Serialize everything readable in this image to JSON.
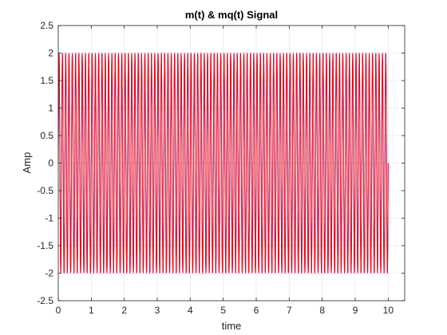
{
  "chart_data": {
    "type": "line",
    "title": "m(t) & mq(t) Signal",
    "xlabel": "time",
    "ylabel": "Amp",
    "xlim": [
      0,
      10.5
    ],
    "ylim": [
      -2.5,
      2.5
    ],
    "x_ticks": [
      0,
      1,
      2,
      3,
      4,
      5,
      6,
      7,
      8,
      9,
      10
    ],
    "x_tick_labels": [
      "0",
      "1",
      "2",
      "3",
      "4",
      "5",
      "6",
      "7",
      "8",
      "9",
      "10"
    ],
    "y_ticks": [
      -2.5,
      -2,
      -1.5,
      -1,
      -0.5,
      0,
      0.5,
      1,
      1.5,
      2,
      2.5
    ],
    "y_tick_labels": [
      "-2.5",
      "-2",
      "-1.5",
      "-1",
      "-0.5",
      "0",
      "0.5",
      "1",
      "1.5",
      "2",
      "2.5"
    ],
    "grid": true,
    "legend": "none",
    "series": [
      {
        "color": "#0000ff",
        "function": "sinusoid",
        "amplitude": 2,
        "frequency": 10,
        "x_range": [
          0,
          10
        ]
      },
      {
        "color": "#ff0000",
        "function": "quantized sinusoid",
        "amplitude": 2,
        "frequency": 10,
        "x_range": [
          0,
          10
        ]
      }
    ]
  }
}
